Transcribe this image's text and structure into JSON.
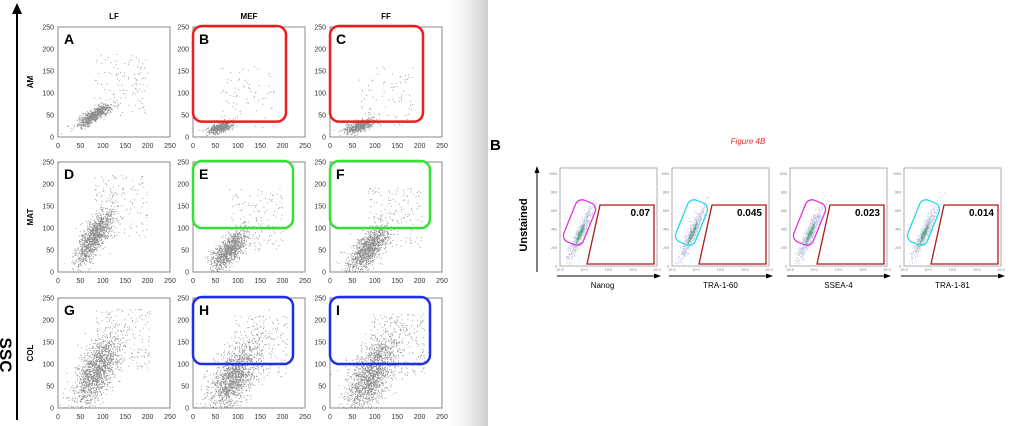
{
  "figure_a": {
    "y_axis_label": "SSC",
    "columns": [
      "LF",
      "MEF",
      "FF"
    ],
    "rows": [
      "AM",
      "MAT",
      "COL"
    ],
    "panels": [
      "A",
      "B",
      "C",
      "D",
      "E",
      "F",
      "G",
      "H",
      "I"
    ],
    "ticks": [
      "0",
      "50",
      "100",
      "150",
      "200",
      "250"
    ],
    "gates": [
      {
        "panels": [
          "B",
          "C"
        ],
        "color": "#ee1c1c"
      },
      {
        "panels": [
          "E",
          "F"
        ],
        "color": "#33e033"
      },
      {
        "panels": [
          "H",
          "I"
        ],
        "color": "#1f2ee8"
      }
    ]
  },
  "figure_b": {
    "panel_letter": "B",
    "caption": "Figure 4B",
    "caption_color": "#ee2a2a",
    "y_axis_label": "Unstained",
    "y_ticks": [
      "0",
      "200",
      "400",
      "600",
      "800",
      "1000"
    ],
    "x_ticks": [
      "10^0",
      "10^1",
      "10^2",
      "10^3",
      "10^4"
    ],
    "plots": [
      {
        "marker": "Nanog",
        "value": "0.07",
        "gate_color": "#e030e0"
      },
      {
        "marker": "TRA-1-60",
        "value": "0.045",
        "gate_color": "#22d8e8"
      },
      {
        "marker": "SSEA-4",
        "value": "0.023",
        "gate_color": "#e030e0"
      },
      {
        "marker": "TRA-1-81",
        "value": "0.014",
        "gate_color": "#22d8e8"
      }
    ],
    "positive_gate_color": "#b01818"
  }
}
